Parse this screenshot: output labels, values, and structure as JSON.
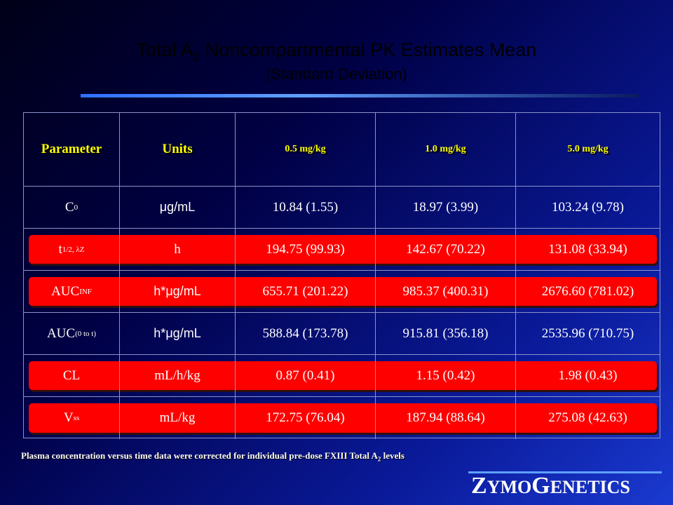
{
  "title": {
    "pre": "Total A",
    "sub": "2",
    "post": " Noncompartmental PK Estimates Mean"
  },
  "subtitle": "(Standard Deviation)",
  "table": {
    "header": [
      "Parameter",
      "Units",
      "0.5 mg/kg",
      "1.0 mg/kg",
      "5.0 mg/kg"
    ],
    "rows": [
      {
        "parameter": {
          "base": "C",
          "sub": "0"
        },
        "units": "μg/mL",
        "values": [
          "10.84 (1.55)",
          "18.97 (3.99)",
          "103.24 (9.78)"
        ]
      },
      {
        "parameter": {
          "base": "t",
          "sub": "1/2, λZ"
        },
        "units": "h",
        "values": [
          "194.75 (99.93)",
          "142.67 (70.22)",
          "131.08 (33.94)"
        ]
      },
      {
        "parameter": {
          "base": "AUC",
          "sub": "INF"
        },
        "units": "h*μg/mL",
        "values": [
          "655.71 (201.22)",
          "985.37 (400.31)",
          "2676.60 (781.02)"
        ]
      },
      {
        "parameter": {
          "base": "AUC",
          "sub": "(0 to t)"
        },
        "units": "h*μg/mL",
        "values": [
          "588.84 (173.78)",
          "915.81 (356.18)",
          "2535.96 (710.75)"
        ]
      },
      {
        "parameter": {
          "base": "CL",
          "sub": ""
        },
        "units": "mL/h/kg",
        "values": [
          "0.87 (0.41)",
          "1.15 (0.42)",
          "1.98 (0.43)"
        ]
      },
      {
        "parameter": {
          "base": "V",
          "sub": "ss"
        },
        "units": "mL/kg",
        "values": [
          "172.75 (76.04)",
          "187.94 (88.64)",
          "275.08 (42.63)"
        ]
      }
    ]
  },
  "footnote": {
    "pre": "Plasma concentration versus time data were corrected for individual pre-dose FXIII Total A",
    "sub": "2",
    "post": " levels"
  },
  "logo": [
    "Z",
    "YMO",
    "G",
    "ENETICS"
  ]
}
